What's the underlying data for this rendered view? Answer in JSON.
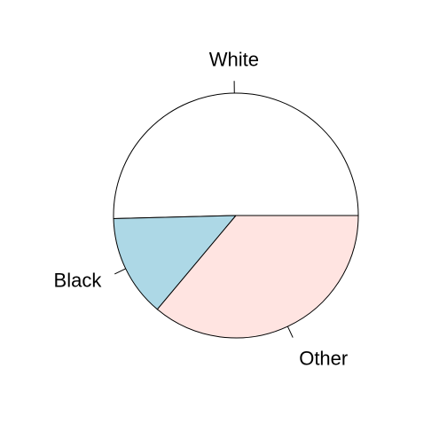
{
  "chart_data": {
    "type": "pie",
    "title": "",
    "categories": [
      "White",
      "Black",
      "Other"
    ],
    "values": [
      50.4,
      13.5,
      36.1
    ],
    "colors": [
      "#FFFFFF",
      "#ADD8E6",
      "#FFE4E1"
    ],
    "border_color": "#000000",
    "start": "right, counter-clockwise",
    "legend": "none"
  }
}
